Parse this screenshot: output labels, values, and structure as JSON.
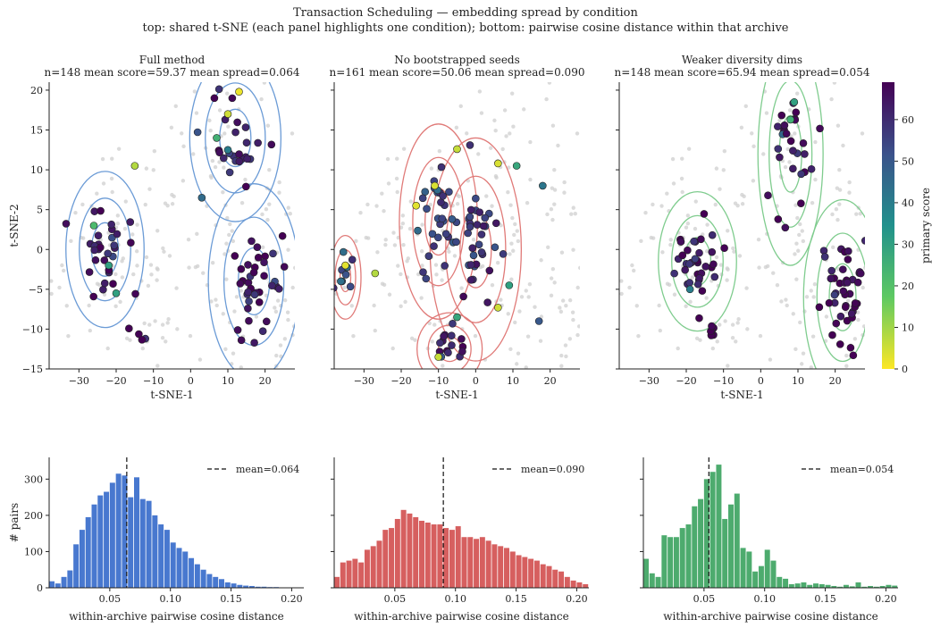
{
  "title": "Transaction Scheduling — embedding spread by condition",
  "subtitle": "top: shared t-SNE (each panel highlights one condition); bottom: pairwise cosine distance within that archive",
  "colorbar": {
    "label": "primary score",
    "ticks": [
      0,
      10,
      20,
      30,
      40,
      50,
      60
    ],
    "range": [
      0,
      69
    ],
    "palette": [
      "#fde725",
      "#5ec962",
      "#21918c",
      "#3b528b",
      "#440154"
    ]
  },
  "chart_data": [
    {
      "type": "scatter",
      "panel": "Full method",
      "title": "Full method",
      "stats": "n=148   mean score=59.37   mean spread=0.064",
      "xlabel": "t-SNE-1",
      "ylabel": "t-SNE-2",
      "xlim": [
        -38,
        28
      ],
      "ylim": [
        -15,
        21
      ],
      "xticks": [
        -30,
        -20,
        -10,
        0,
        10,
        20
      ],
      "yticks": [
        -15,
        -10,
        -5,
        0,
        5,
        10,
        15,
        20
      ],
      "color": "#6b9bd6",
      "clusters": [
        {
          "cx": -23,
          "cy": 0,
          "sx": 3,
          "sy": 2.8,
          "n": 30,
          "score": 64
        },
        {
          "cx": 12,
          "cy": 14,
          "sx": 3.5,
          "sy": 3,
          "n": 25,
          "score": 62
        },
        {
          "cx": 17,
          "cy": -4,
          "sx": 3.5,
          "sy": 3.5,
          "n": 38,
          "score": 66
        },
        {
          "cx": -14,
          "cy": -11,
          "sx": 1,
          "sy": 0.6,
          "n": 4,
          "score": 68
        }
      ],
      "highlights": [
        {
          "x": -15,
          "y": 10.5,
          "s": 8
        },
        {
          "x": 10,
          "y": 17,
          "s": 5
        },
        {
          "x": 13,
          "y": 19.8,
          "s": 2
        },
        {
          "x": 7,
          "y": 14,
          "s": 25
        },
        {
          "x": 10,
          "y": 12.5,
          "s": 40
        },
        {
          "x": -26,
          "y": 3,
          "s": 22
        },
        {
          "x": -20,
          "y": -5.5,
          "s": 30
        },
        {
          "x": -22,
          "y": -2,
          "s": 30
        },
        {
          "x": 3,
          "y": 6.5,
          "s": 45
        }
      ]
    },
    {
      "type": "scatter",
      "panel": "No bootstrapped seeds",
      "title": "No bootstrapped seeds",
      "stats": "n=161   mean score=50.06   mean spread=0.090",
      "xlabel": "t-SNE-1",
      "xlim": [
        -38,
        28
      ],
      "ylim": [
        -15,
        21
      ],
      "xticks": [
        -30,
        -20,
        -10,
        0,
        10,
        20
      ],
      "color": "#e07a78",
      "clusters": [
        {
          "cx": -10,
          "cy": 3.5,
          "sx": 3,
          "sy": 3.5,
          "n": 30,
          "score": 55
        },
        {
          "cx": 0,
          "cy": 0,
          "sx": 3.5,
          "sy": 4,
          "n": 34,
          "score": 58
        },
        {
          "cx": -35,
          "cy": -3.5,
          "sx": 1.2,
          "sy": 1.5,
          "n": 9,
          "score": 52
        },
        {
          "cx": -7,
          "cy": -12.5,
          "sx": 2.5,
          "sy": 1.3,
          "n": 16,
          "score": 62
        }
      ],
      "highlights": [
        {
          "x": -5,
          "y": 12.6,
          "s": 6
        },
        {
          "x": 6,
          "y": 10.8,
          "s": 4
        },
        {
          "x": 11,
          "y": 10.5,
          "s": 28
        },
        {
          "x": -11,
          "y": 8,
          "s": 4
        },
        {
          "x": -16,
          "y": 5.5,
          "s": 3
        },
        {
          "x": 6,
          "y": -7.3,
          "s": 5
        },
        {
          "x": 9,
          "y": -4.5,
          "s": 30
        },
        {
          "x": -5,
          "y": -8.5,
          "s": 28
        },
        {
          "x": -10,
          "y": -13.5,
          "s": 6
        },
        {
          "x": -35,
          "y": -2,
          "s": 3
        },
        {
          "x": -27,
          "y": -3,
          "s": 8
        },
        {
          "x": 18,
          "y": 8,
          "s": 42
        },
        {
          "x": 17,
          "y": -9,
          "s": 50
        }
      ]
    },
    {
      "type": "scatter",
      "panel": "Weaker diversity dims",
      "title": "Weaker diversity dims",
      "stats": "n=148   mean score=65.94   mean spread=0.054",
      "xlabel": "t-SNE-1",
      "xlim": [
        -38,
        28
      ],
      "ylim": [
        -15,
        21
      ],
      "xticks": [
        -30,
        -20,
        -10,
        0,
        10,
        20
      ],
      "color": "#7fcc8e",
      "clusters": [
        {
          "cx": -17,
          "cy": -1.5,
          "sx": 3,
          "sy": 2.5,
          "n": 34,
          "score": 67
        },
        {
          "cx": 8,
          "cy": 12,
          "sx": 2.5,
          "sy": 4,
          "n": 28,
          "score": 66
        },
        {
          "cx": 22,
          "cy": -6,
          "sx": 3,
          "sy": 3.5,
          "n": 44,
          "score": 67
        },
        {
          "cx": -13,
          "cy": -10,
          "sx": 1,
          "sy": 0.8,
          "n": 6,
          "score": 68
        }
      ],
      "highlights": [
        {
          "x": 9,
          "y": 18.5,
          "s": 30
        },
        {
          "x": 8,
          "y": 16.3,
          "s": 25
        },
        {
          "x": -19,
          "y": -5,
          "s": 40
        }
      ]
    },
    {
      "type": "bar",
      "panel": "Full method histogram",
      "xlabel": "within-archive pairwise cosine distance",
      "ylabel": "# pairs",
      "xlim": [
        0,
        0.21
      ],
      "ylim": [
        0,
        360
      ],
      "xticks": [
        0.05,
        0.1,
        0.15,
        0.2
      ],
      "yticks": [
        0,
        100,
        200,
        300
      ],
      "color": "#4878cf",
      "bin_start": 0.0,
      "bin_width": 0.005,
      "values": [
        18,
        12,
        30,
        48,
        120,
        160,
        195,
        230,
        255,
        265,
        290,
        315,
        310,
        250,
        305,
        245,
        240,
        200,
        175,
        160,
        125,
        110,
        100,
        82,
        65,
        50,
        38,
        30,
        24,
        15,
        12,
        8,
        6,
        5,
        3,
        3,
        2,
        2,
        1,
        1,
        0,
        0
      ],
      "mean": 0.064,
      "legend_label": "mean=0.064"
    },
    {
      "type": "bar",
      "panel": "No bootstrapped seeds histogram",
      "xlabel": "within-archive pairwise cosine distance",
      "xlim": [
        0,
        0.21
      ],
      "ylim": [
        0,
        360
      ],
      "xticks": [
        0.05,
        0.1,
        0.15,
        0.2
      ],
      "color": "#d65f5f",
      "bin_start": 0.0,
      "bin_width": 0.005,
      "values": [
        30,
        70,
        75,
        80,
        70,
        105,
        115,
        130,
        160,
        165,
        190,
        215,
        205,
        195,
        185,
        180,
        175,
        175,
        165,
        160,
        170,
        140,
        140,
        135,
        140,
        130,
        120,
        115,
        110,
        100,
        90,
        85,
        80,
        75,
        65,
        60,
        50,
        45,
        30,
        20,
        15,
        10
      ],
      "mean": 0.09,
      "legend_label": "mean=0.090"
    },
    {
      "type": "bar",
      "panel": "Weaker diversity dims histogram",
      "xlabel": "within-archive pairwise cosine distance",
      "xlim": [
        0,
        0.21
      ],
      "ylim": [
        0,
        360
      ],
      "xticks": [
        0.05,
        0.1,
        0.15,
        0.2
      ],
      "color": "#4dab6e",
      "bin_start": 0.0,
      "bin_width": 0.005,
      "values": [
        80,
        40,
        30,
        145,
        140,
        140,
        165,
        175,
        225,
        245,
        300,
        320,
        340,
        190,
        230,
        260,
        110,
        100,
        45,
        60,
        105,
        75,
        30,
        25,
        10,
        12,
        15,
        8,
        12,
        10,
        8,
        5,
        3,
        8,
        4,
        15,
        3,
        5,
        3,
        5,
        8,
        6
      ],
      "mean": 0.054,
      "legend_label": "mean=0.054"
    }
  ]
}
